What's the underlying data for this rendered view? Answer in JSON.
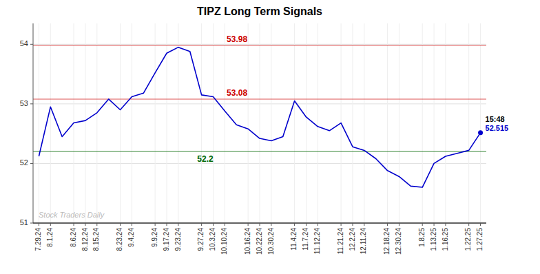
{
  "chart_data": {
    "type": "line",
    "title": "TIPZ Long Term Signals",
    "categories": [
      "7.29.24",
      "8.1.24",
      null,
      "8.6.24",
      "8.12.24",
      "8.15.24",
      null,
      "8.23.24",
      "9.4.24",
      null,
      "9.9.24",
      "9.17.24",
      "9.23.24",
      null,
      "9.27.24",
      "10.3.24",
      "10.10.24",
      null,
      "10.16.24",
      "10.22.24",
      "10.30.24",
      null,
      "11.4.24",
      "11.7.24",
      "11.12.24",
      null,
      "11.21.24",
      "12.2.24",
      "12.11.24",
      null,
      "12.18.24",
      "12.30.24",
      null,
      "1.8.25",
      "1.13.25",
      "1.16.25",
      null,
      "1.22.25",
      "1.27.25"
    ],
    "values": [
      52.12,
      52.95,
      52.45,
      52.68,
      52.72,
      52.85,
      53.08,
      52.9,
      53.12,
      53.18,
      53.52,
      53.85,
      53.95,
      53.88,
      53.15,
      53.12,
      52.88,
      52.65,
      52.58,
      52.42,
      52.38,
      52.45,
      53.05,
      52.78,
      52.62,
      52.55,
      52.68,
      52.28,
      52.22,
      52.08,
      51.88,
      51.78,
      51.62,
      51.6,
      52.0,
      52.12,
      52.17,
      52.22,
      52.515
    ],
    "color": "#0000cc",
    "hlines": [
      {
        "value": 53.98,
        "label": "53.98",
        "color": "#cc0000"
      },
      {
        "value": 53.08,
        "label": "53.08",
        "color": "#cc0000"
      },
      {
        "value": 52.2,
        "label": "52.2",
        "color": "#006600"
      }
    ],
    "end_annotation": {
      "time": "15:48",
      "value": 52.515,
      "label": "52.515"
    },
    "watermark": {
      "text": "Stock Traders Daily",
      "color": "#bbbbbb"
    },
    "ylim": [
      51.0,
      54.35
    ],
    "yticks": [
      51,
      52,
      53,
      54
    ],
    "grid": true
  }
}
